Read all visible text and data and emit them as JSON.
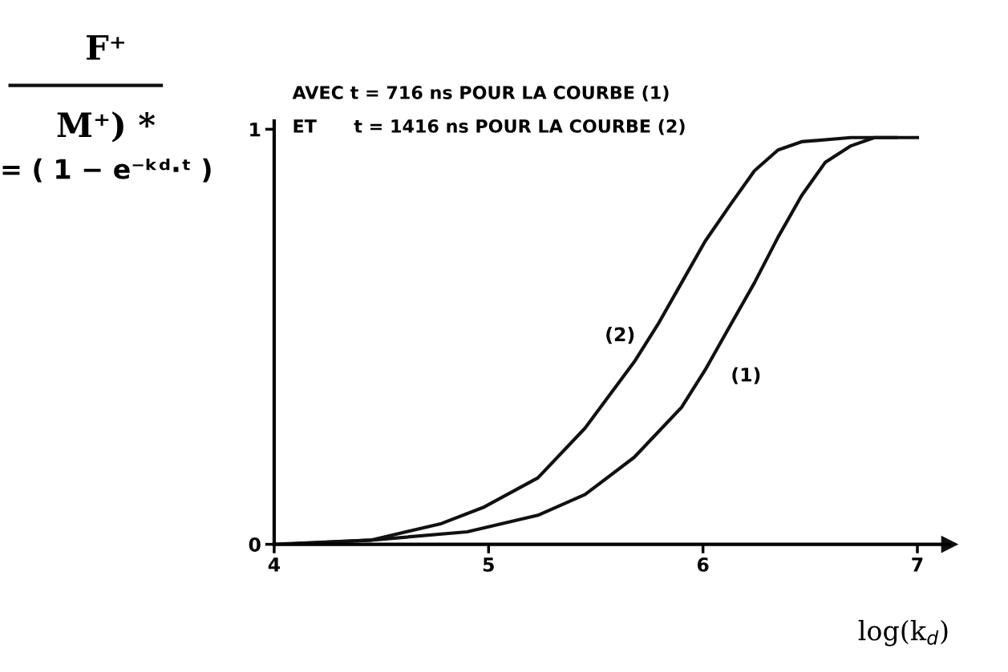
{
  "chart_data": {
    "type": "line",
    "xlabel": "log(k$_{d}$)",
    "xlim": [
      4,
      7.15
    ],
    "ylim": [
      0,
      1.02
    ],
    "xticks": [
      4,
      5,
      6,
      7
    ],
    "yticks": [
      0,
      1
    ],
    "grid": false,
    "legend": false,
    "marker": "none",
    "line_style": "solid",
    "series": [
      {
        "color": "#111111",
        "x": [
          4.0,
          4.45,
          4.9,
          5.23,
          5.45,
          5.68,
          5.9,
          6.01,
          6.13,
          6.24,
          6.35,
          6.46,
          6.57,
          6.69,
          6.8,
          7.0
        ],
        "values": [
          0.0,
          0.01,
          0.03,
          0.07,
          0.12,
          0.21,
          0.33,
          0.42,
          0.53,
          0.63,
          0.74,
          0.84,
          0.92,
          0.96,
          0.98,
          0.98
        ]
      },
      {
        "color": "#111111",
        "x": [
          4.05,
          4.45,
          4.78,
          4.98,
          5.23,
          5.45,
          5.68,
          5.79,
          5.9,
          6.01,
          6.13,
          6.24,
          6.35,
          6.46,
          6.69,
          6.9
        ],
        "values": [
          0.0,
          0.01,
          0.05,
          0.09,
          0.16,
          0.28,
          0.44,
          0.53,
          0.63,
          0.73,
          0.82,
          0.9,
          0.95,
          0.97,
          0.98,
          0.98
        ]
      }
    ],
    "annotations": [
      "F⁺",
      "M⁺) *",
      "= ( 1 − e⁻ᵏᵈ·ᵗ )",
      "AVEC t = 716 ns POUR LA COURBE (1)",
      "ET      t = 1416 ns POUR LA COURBE (2)",
      "(1)",
      "(2)"
    ]
  }
}
